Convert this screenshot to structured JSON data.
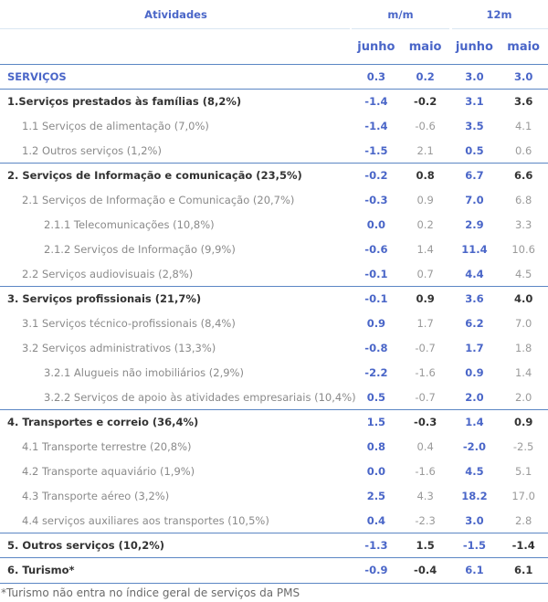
{
  "header": {
    "col_label": "Atividades",
    "group_mm": "m/m",
    "group_12m": "12m",
    "sub": [
      "junho",
      "maio",
      "junho",
      "maio"
    ]
  },
  "rows": [
    {
      "label": "SERVIÇOS",
      "values": [
        "0.3",
        "0.2",
        "3.0",
        "3.0"
      ]
    },
    {
      "label": "1.Serviços prestados às famílias (8,2%)",
      "values": [
        "-1.4",
        "-0.2",
        "3.1",
        "3.6"
      ]
    },
    {
      "label": "1.1 Serviços de alimentação (7,0%)",
      "values": [
        "-1.4",
        "-0.6",
        "3.5",
        "4.1"
      ]
    },
    {
      "label": "1.2 Outros serviços (1,2%)",
      "values": [
        "-1.5",
        "2.1",
        "0.5",
        "0.6"
      ]
    },
    {
      "label": "2. Serviços de Informação e comunicação (23,5%)",
      "values": [
        "-0.2",
        "0.8",
        "6.7",
        "6.6"
      ]
    },
    {
      "label": "2.1 Serviços de Informação e Comunicação (20,7%)",
      "values": [
        "-0.3",
        "0.9",
        "7.0",
        "6.8"
      ]
    },
    {
      "label": "2.1.1 Telecomunicações (10,8%)",
      "values": [
        "0.0",
        "0.2",
        "2.9",
        "3.3"
      ]
    },
    {
      "label": "2.1.2 Serviços de Informação (9,9%)",
      "values": [
        "-0.6",
        "1.4",
        "11.4",
        "10.6"
      ]
    },
    {
      "label": "2.2 Serviços audiovisuais (2,8%)",
      "values": [
        "-0.1",
        "0.7",
        "4.4",
        "4.5"
      ]
    },
    {
      "label": "3. Serviços profissionais (21,7%)",
      "values": [
        "-0.1",
        "0.9",
        "3.6",
        "4.0"
      ]
    },
    {
      "label": "3.1 Serviços técnico-profissionais (8,4%)",
      "values": [
        "0.9",
        "1.7",
        "6.2",
        "7.0"
      ]
    },
    {
      "label": "3.2 Serviços administrativos (13,3%)",
      "values": [
        "-0.8",
        "-0.7",
        "1.7",
        "1.8"
      ]
    },
    {
      "label": "3.2.1 Alugueis não imobiliários (2,9%)",
      "values": [
        "-2.2",
        "-1.6",
        "0.9",
        "1.4"
      ]
    },
    {
      "label": "3.2.2 Serviços de apoio às atividades empresariais (10,4%)",
      "values": [
        "0.5",
        "-0.7",
        "2.0",
        "2.0"
      ]
    },
    {
      "label": "4. Transportes e correio (36,4%)",
      "values": [
        "1.5",
        "-0.3",
        "1.4",
        "0.9"
      ]
    },
    {
      "label": "4.1 Transporte terrestre (20,8%)",
      "values": [
        "0.8",
        "0.4",
        "-2.0",
        "-2.5"
      ]
    },
    {
      "label": "4.2 Transporte aquaviário (1,9%)",
      "values": [
        "0.0",
        "-1.6",
        "4.5",
        "5.1"
      ]
    },
    {
      "label": "4.3 Transporte aéreo (3,2%)",
      "values": [
        "2.5",
        "4.3",
        "18.2",
        "17.0"
      ]
    },
    {
      "label": "4.4 serviços auxiliares aos transportes (10,5%)",
      "values": [
        "0.4",
        "-2.3",
        "3.0",
        "2.8"
      ]
    },
    {
      "label": "5. Outros serviços (10,2%)",
      "values": [
        "-1.3",
        "1.5",
        "-1.5",
        "-1.4"
      ]
    },
    {
      "label": "6. Turismo*",
      "values": [
        "-0.9",
        "-0.4",
        "6.1",
        "6.1"
      ]
    }
  ],
  "footnote": "*Turismo não entra no índice geral de serviços da PMS",
  "colors": {
    "accent": "#4a66c8",
    "rule": "#5b86c4",
    "header_bg": "#ffffff"
  }
}
